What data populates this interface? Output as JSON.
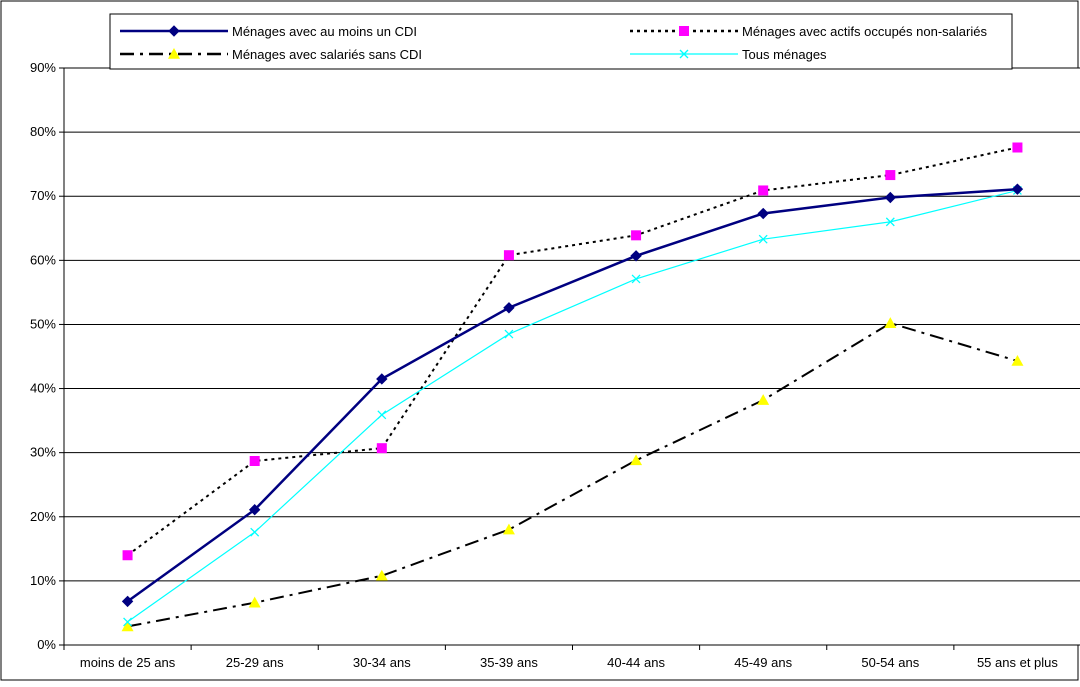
{
  "chart_data": {
    "type": "line",
    "title": "",
    "xlabel": "",
    "ylabel": "",
    "categories": [
      "moins de 25 ans",
      "25-29 ans",
      "30-34 ans",
      "35-39 ans",
      "40-44 ans",
      "45-49 ans",
      "50-54 ans",
      "55 ans et plus"
    ],
    "ylim": [
      0,
      90
    ],
    "yticks": [
      0,
      10,
      20,
      30,
      40,
      50,
      60,
      70,
      80,
      90
    ],
    "ytick_labels": [
      "0%",
      "10%",
      "20%",
      "30%",
      "40%",
      "50%",
      "60%",
      "70%",
      "80%",
      "90%"
    ],
    "grid": "horizontal",
    "legend_position": "top",
    "series": [
      {
        "name": "Ménages avec au moins un CDI",
        "values": [
          6.8,
          21.1,
          41.5,
          52.6,
          60.7,
          67.3,
          69.8,
          71.1
        ],
        "color": "#000080",
        "marker": "diamond",
        "line_style": "solid"
      },
      {
        "name": "Ménages avec actifs occupés non-salariés",
        "values": [
          14.0,
          28.7,
          30.7,
          60.8,
          63.9,
          70.9,
          73.3,
          77.6
        ],
        "color": "#ff00ff",
        "line_color": "#000000",
        "marker": "square",
        "line_style": "dotted"
      },
      {
        "name": "Ménages avec salariés sans CDI",
        "values": [
          2.9,
          6.6,
          10.8,
          18.0,
          28.8,
          38.2,
          50.2,
          44.3
        ],
        "color": "#ffff00",
        "line_color": "#000000",
        "marker": "triangle",
        "line_style": "dashdot"
      },
      {
        "name": "Tous ménages",
        "values": [
          3.6,
          17.6,
          35.9,
          48.5,
          57.1,
          63.3,
          66.0,
          70.9
        ],
        "color": "#00ffff",
        "marker": "x",
        "line_style": "solid"
      }
    ]
  }
}
